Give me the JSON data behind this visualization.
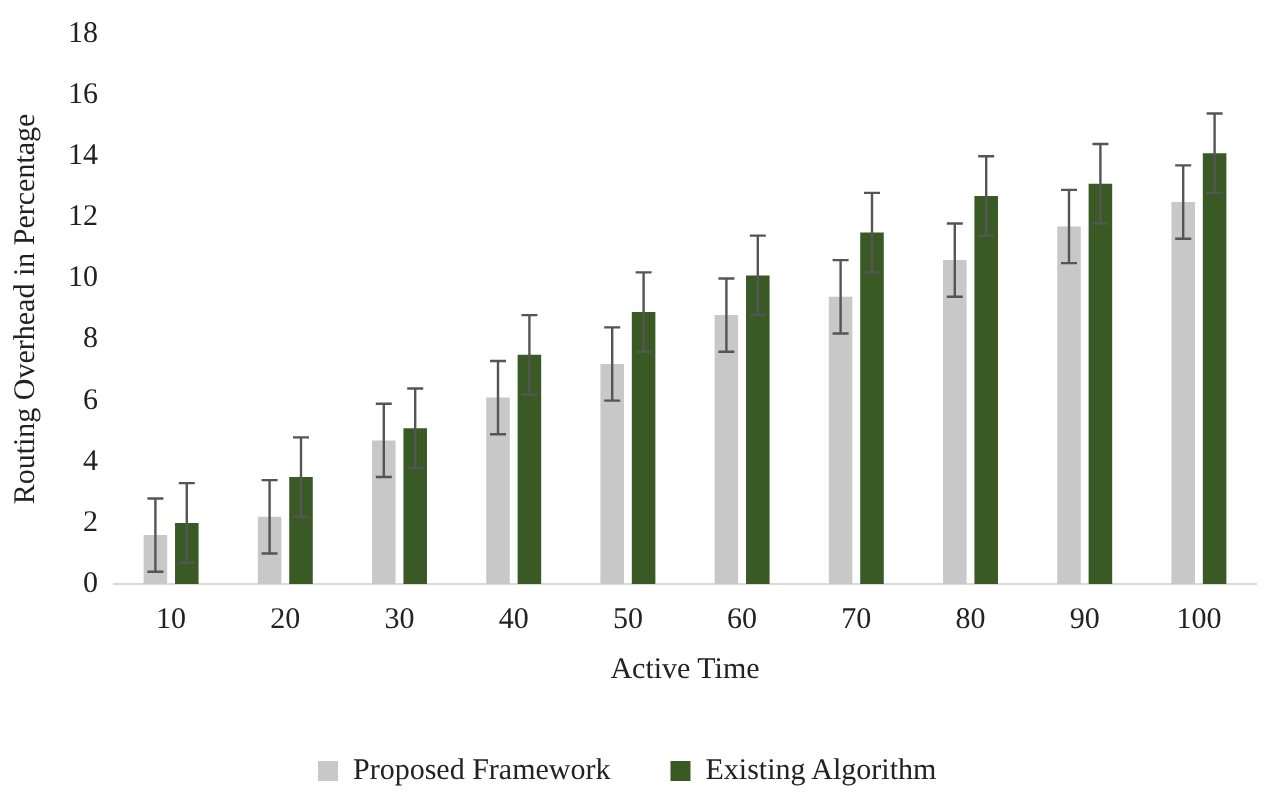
{
  "chart_data": {
    "type": "bar",
    "xlabel": "Active Time",
    "ylabel": "Routing Overhead in Percentage",
    "categories": [
      "10",
      "20",
      "30",
      "40",
      "50",
      "60",
      "70",
      "80",
      "90",
      "100"
    ],
    "series": [
      {
        "name": "Proposed Framework",
        "color": "#c8c8c8",
        "values": [
          1.6,
          2.2,
          4.7,
          6.1,
          7.2,
          8.8,
          9.4,
          10.6,
          11.7,
          12.5
        ],
        "errors": [
          1.2,
          1.2,
          1.2,
          1.2,
          1.2,
          1.2,
          1.2,
          1.2,
          1.2,
          1.2
        ]
      },
      {
        "name": "Existing Algorithm",
        "color": "#3a5a25",
        "values": [
          2.0,
          3.5,
          5.1,
          7.5,
          8.9,
          10.1,
          11.5,
          12.7,
          13.1,
          14.1
        ],
        "errors": [
          1.3,
          1.3,
          1.3,
          1.3,
          1.3,
          1.3,
          1.3,
          1.3,
          1.3,
          1.3
        ]
      }
    ],
    "ylim": [
      0,
      18
    ],
    "yticks": [
      0,
      2,
      4,
      6,
      8,
      10,
      12,
      14,
      16,
      18
    ],
    "grid": false,
    "legend": "bottom"
  }
}
